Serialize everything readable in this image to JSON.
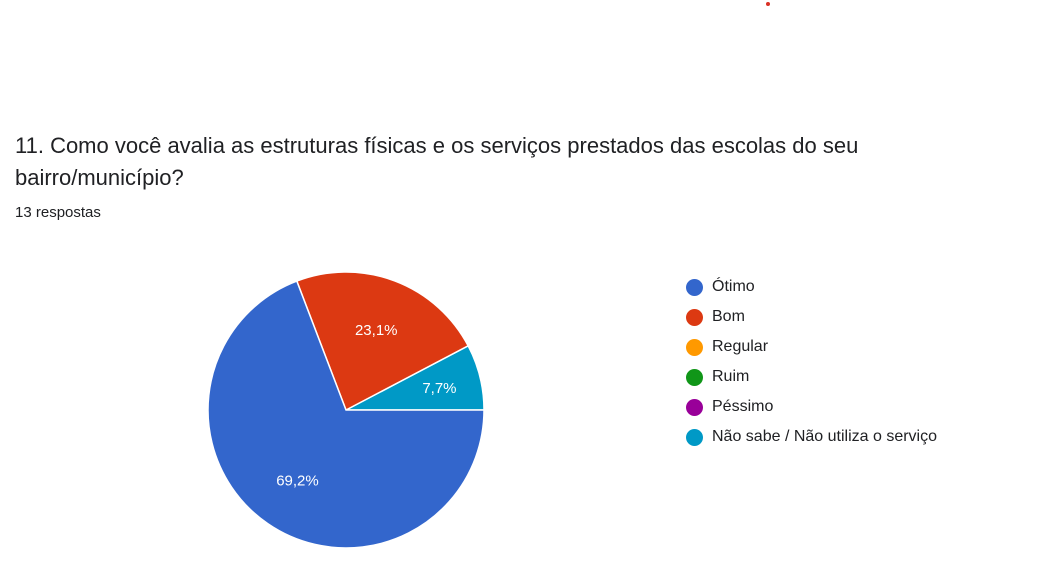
{
  "question": {
    "title": "11. Como você avalia as estruturas físicas e os serviços prestados das escolas do seu bairro/município?",
    "responses": "13 respostas"
  },
  "chart_data": {
    "type": "pie",
    "legend_position": "right",
    "slices": [
      {
        "label": "Ótimo",
        "value": 69.2,
        "data_label": "69,2%",
        "color": "#3366cc"
      },
      {
        "label": "Bom",
        "value": 23.1,
        "data_label": "23,1%",
        "color": "#dc3912"
      },
      {
        "label": "Regular",
        "value": 0,
        "data_label": "",
        "color": "#ff9900"
      },
      {
        "label": "Ruim",
        "value": 0,
        "data_label": "",
        "color": "#109618"
      },
      {
        "label": "Péssimo",
        "value": 0,
        "data_label": "",
        "color": "#990099"
      },
      {
        "label": "Não sabe / Não utiliza o serviço",
        "value": 7.7,
        "data_label": "7,7%",
        "color": "#0099c6"
      }
    ]
  }
}
